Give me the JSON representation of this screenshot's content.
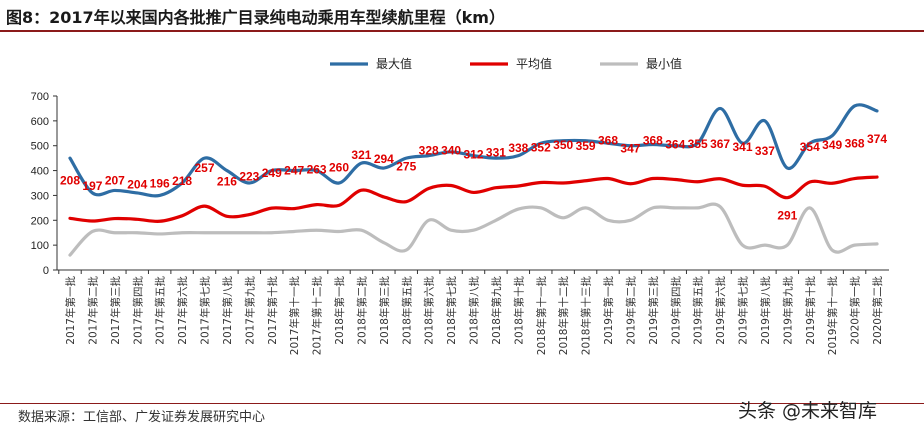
{
  "title": "图8：2017年以来国内各批推广目录纯电动乘用车型续航里程（km）",
  "source": "数据来源：工信部、广发证券发展研究中心",
  "watermark": "头条 @未来智库",
  "chart_data": {
    "type": "line",
    "title": "图8：2017年以来国内各批推广目录纯电动乘用车型续航里程（km）",
    "xlabel": "",
    "ylabel": "",
    "ylim": [
      0,
      700
    ],
    "yticks": [
      0,
      100,
      200,
      300,
      400,
      500,
      600,
      700
    ],
    "grid": false,
    "legend": "top",
    "categories": [
      "2017年第一批",
      "2017年第二批",
      "2017年第三批",
      "2017年第四批",
      "2017年第五批",
      "2017年第六批",
      "2017年第七批",
      "2017年第八批",
      "2017年第九批",
      "2017年第十批",
      "2017年第十一批",
      "2017年第十二批",
      "2018年第一批",
      "2018年第二批",
      "2018年第三批",
      "2018年第五批",
      "2018年第六批",
      "2018年第七批",
      "2018年第八批",
      "2018年第九批",
      "2018年第十批",
      "2018年第十一批",
      "2018年第十二批",
      "2018年第十三批",
      "2019年第一批",
      "2019年第二批",
      "2019年第三批",
      "2019年第四批",
      "2019年第五批",
      "2019年第六批",
      "2019年第七批",
      "2019年第八批",
      "2019年第九批",
      "2019年第十批",
      "2019年第十一批",
      "2020年第一批",
      "2020年第二批"
    ],
    "series": [
      {
        "name": "最大值",
        "color": "#2e6da4",
        "values": [
          450,
          310,
          320,
          310,
          300,
          350,
          450,
          400,
          350,
          400,
          400,
          400,
          350,
          430,
          410,
          450,
          460,
          475,
          460,
          450,
          460,
          510,
          520,
          520,
          510,
          500,
          505,
          500,
          510,
          650,
          510,
          600,
          410,
          510,
          540,
          660,
          640
        ]
      },
      {
        "name": "平均值",
        "color": "#e00000",
        "labeled": true,
        "values": [
          208,
          197,
          207,
          204,
          196,
          218,
          257,
          216,
          223,
          249,
          247,
          263,
          260,
          321,
          294,
          275,
          328,
          340,
          312,
          331,
          338,
          352,
          350,
          359,
          368,
          347,
          368,
          364,
          355,
          367,
          341,
          337,
          291,
          354,
          349,
          368,
          374
        ]
      },
      {
        "name": "最小值",
        "color": "#bdbdbd",
        "values": [
          60,
          155,
          150,
          150,
          145,
          150,
          150,
          150,
          150,
          150,
          155,
          160,
          155,
          160,
          110,
          80,
          200,
          160,
          160,
          200,
          245,
          250,
          210,
          250,
          200,
          200,
          250,
          250,
          250,
          255,
          100,
          100,
          100,
          250,
          80,
          100,
          105
        ]
      }
    ]
  }
}
